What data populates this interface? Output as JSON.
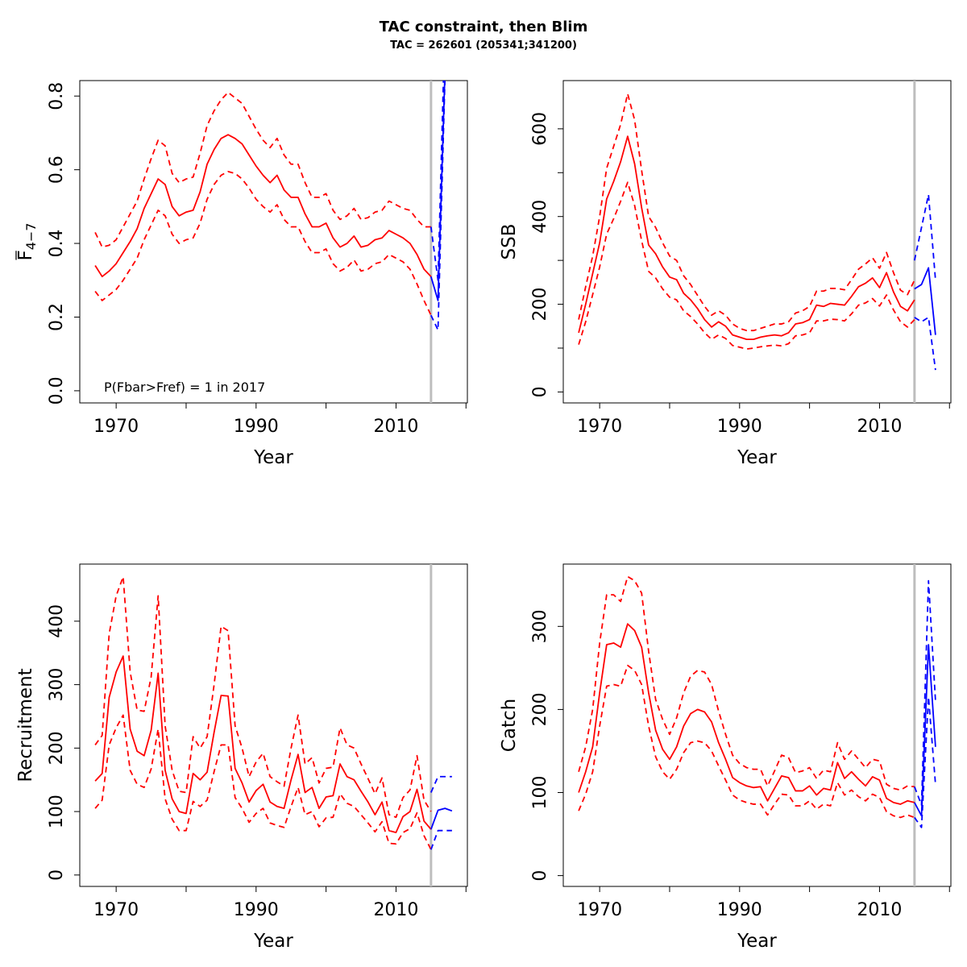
{
  "title": "TAC constraint, then Blim",
  "subtitle": "TAC = 262601 (205341;341200)",
  "colors": {
    "historic": "#ff0000",
    "forecast": "#0000ff",
    "divider": "#bebebe",
    "axis": "#000000"
  },
  "chart_data": [
    {
      "id": "fbar",
      "type": "line",
      "title": "",
      "xlabel": "Year",
      "ylabel": "F̄4−7",
      "ylabel_main": "F",
      "ylabel_sub": "4−7",
      "xlim": [
        1964.8,
        2020.2
      ],
      "ylim": [
        -0.033,
        0.842
      ],
      "xticks": [
        1970,
        1980,
        1990,
        2000,
        2010,
        2020
      ],
      "xtick_labels": [
        "1970",
        "",
        "1990",
        "",
        "2010",
        ""
      ],
      "yticks": [
        0.0,
        0.2,
        0.4,
        0.6,
        0.8
      ],
      "ytick_labels": [
        "0.0",
        "0.2",
        "0.4",
        "0.6",
        "0.8"
      ],
      "grid": false,
      "divider_year": 2015,
      "annotation": "P(Fbar>Fref) = 1  in 2017",
      "historic": {
        "x": [
          1967,
          1968,
          1969,
          1970,
          1971,
          1972,
          1973,
          1974,
          1975,
          1976,
          1977,
          1978,
          1979,
          1980,
          1981,
          1982,
          1983,
          1984,
          1985,
          1986,
          1987,
          1988,
          1989,
          1990,
          1991,
          1992,
          1993,
          1994,
          1995,
          1996,
          1997,
          1998,
          1999,
          2000,
          2001,
          2002,
          2003,
          2004,
          2005,
          2006,
          2007,
          2008,
          2009,
          2010,
          2011,
          2012,
          2013,
          2014,
          2015
        ],
        "median": [
          0.34,
          0.31,
          0.325,
          0.345,
          0.375,
          0.405,
          0.44,
          0.495,
          0.535,
          0.575,
          0.56,
          0.5,
          0.475,
          0.485,
          0.49,
          0.54,
          0.615,
          0.655,
          0.685,
          0.695,
          0.685,
          0.67,
          0.64,
          0.61,
          0.585,
          0.565,
          0.585,
          0.545,
          0.525,
          0.525,
          0.48,
          0.445,
          0.445,
          0.455,
          0.415,
          0.39,
          0.4,
          0.42,
          0.39,
          0.395,
          0.41,
          0.415,
          0.435,
          0.425,
          0.415,
          0.4,
          0.37,
          0.33,
          0.31
        ],
        "upper": [
          0.43,
          0.39,
          0.395,
          0.41,
          0.445,
          0.48,
          0.515,
          0.575,
          0.63,
          0.68,
          0.665,
          0.59,
          0.565,
          0.575,
          0.58,
          0.645,
          0.72,
          0.76,
          0.79,
          0.81,
          0.795,
          0.78,
          0.745,
          0.71,
          0.68,
          0.66,
          0.685,
          0.64,
          0.615,
          0.615,
          0.565,
          0.525,
          0.525,
          0.535,
          0.49,
          0.465,
          0.475,
          0.495,
          0.465,
          0.47,
          0.485,
          0.49,
          0.515,
          0.505,
          0.495,
          0.49,
          0.465,
          0.445,
          0.445
        ],
        "lower": [
          0.27,
          0.245,
          0.26,
          0.275,
          0.3,
          0.33,
          0.36,
          0.41,
          0.45,
          0.49,
          0.475,
          0.425,
          0.4,
          0.41,
          0.415,
          0.455,
          0.52,
          0.56,
          0.585,
          0.595,
          0.59,
          0.575,
          0.55,
          0.52,
          0.5,
          0.485,
          0.505,
          0.465,
          0.445,
          0.445,
          0.405,
          0.375,
          0.375,
          0.385,
          0.345,
          0.325,
          0.335,
          0.355,
          0.325,
          0.33,
          0.345,
          0.35,
          0.37,
          0.36,
          0.35,
          0.33,
          0.29,
          0.245,
          0.205
        ]
      },
      "forecast": {
        "x": [
          2015,
          2016,
          2017,
          2018
        ],
        "median": [
          0.31,
          0.245,
          0.87,
          null
        ],
        "upper": [
          0.445,
          0.3,
          1.0,
          null
        ],
        "lower": [
          0.205,
          0.165,
          0.85,
          null
        ]
      }
    },
    {
      "id": "ssb",
      "type": "line",
      "title": "",
      "xlabel": "Year",
      "ylabel": "SSB",
      "xlim": [
        1964.8,
        2020.2
      ],
      "ylim": [
        -25,
        710
      ],
      "xticks": [
        1970,
        1980,
        1990,
        2000,
        2010,
        2020
      ],
      "xtick_labels": [
        "1970",
        "",
        "1990",
        "",
        "2010",
        ""
      ],
      "yticks": [
        0,
        100,
        200,
        300,
        400,
        500,
        600
      ],
      "ytick_labels": [
        "0",
        "",
        "200",
        "",
        "400",
        "",
        "600"
      ],
      "grid": false,
      "divider_year": 2015,
      "historic": {
        "x": [
          1967,
          1968,
          1969,
          1970,
          1971,
          1972,
          1973,
          1974,
          1975,
          1976,
          1977,
          1978,
          1979,
          1980,
          1981,
          1982,
          1983,
          1984,
          1985,
          1986,
          1987,
          1988,
          1989,
          1990,
          1991,
          1992,
          1993,
          1994,
          1995,
          1996,
          1997,
          1998,
          1999,
          2000,
          2001,
          2002,
          2003,
          2004,
          2005,
          2006,
          2007,
          2008,
          2009,
          2010,
          2011,
          2012,
          2013,
          2014,
          2015
        ],
        "median": [
          135,
          200,
          270,
          340,
          440,
          480,
          525,
          583,
          520,
          420,
          335,
          315,
          285,
          262,
          256,
          225,
          210,
          190,
          165,
          148,
          160,
          150,
          130,
          125,
          120,
          120,
          125,
          128,
          130,
          128,
          135,
          155,
          158,
          165,
          198,
          195,
          202,
          200,
          198,
          218,
          240,
          248,
          260,
          238,
          272,
          228,
          195,
          185,
          210
        ],
        "upper": [
          165,
          240,
          310,
          400,
          510,
          560,
          610,
          680,
          620,
          505,
          400,
          375,
          340,
          310,
          300,
          265,
          245,
          220,
          195,
          175,
          185,
          175,
          155,
          145,
          140,
          140,
          145,
          150,
          155,
          155,
          160,
          180,
          185,
          195,
          230,
          230,
          236,
          236,
          233,
          256,
          280,
          292,
          306,
          282,
          318,
          272,
          232,
          222,
          255
        ],
        "lower": [
          108,
          160,
          222,
          285,
          360,
          395,
          435,
          478,
          425,
          345,
          275,
          260,
          235,
          216,
          210,
          185,
          172,
          155,
          135,
          120,
          130,
          122,
          106,
          102,
          98,
          100,
          103,
          105,
          107,
          105,
          110,
          128,
          130,
          135,
          162,
          162,
          166,
          165,
          162,
          178,
          198,
          203,
          213,
          196,
          221,
          187,
          160,
          148,
          165
        ]
      },
      "forecast": {
        "x": [
          2015,
          2016,
          2017,
          2018
        ],
        "median": [
          235,
          245,
          283,
          130
        ],
        "upper": [
          300,
          375,
          450,
          255
        ],
        "lower": [
          170,
          160,
          170,
          50
        ]
      }
    },
    {
      "id": "recruitment",
      "type": "line",
      "title": "",
      "xlabel": "Year",
      "ylabel": "Recruitment",
      "xlim": [
        1964.8,
        2020.2
      ],
      "ylim": [
        -18,
        490
      ],
      "xticks": [
        1970,
        1980,
        1990,
        2000,
        2010,
        2020
      ],
      "xtick_labels": [
        "1970",
        "",
        "1990",
        "",
        "2010",
        ""
      ],
      "yticks": [
        0,
        100,
        200,
        300,
        400
      ],
      "ytick_labels": [
        "0",
        "100",
        "200",
        "300",
        "400"
      ],
      "grid": false,
      "divider_year": 2015,
      "historic": {
        "x": [
          1967,
          1968,
          1969,
          1970,
          1971,
          1972,
          1973,
          1974,
          1975,
          1976,
          1977,
          1978,
          1979,
          1980,
          1981,
          1982,
          1983,
          1984,
          1985,
          1986,
          1987,
          1988,
          1989,
          1990,
          1991,
          1992,
          1993,
          1994,
          1995,
          1996,
          1997,
          1998,
          1999,
          2000,
          2001,
          2002,
          2003,
          2004,
          2005,
          2006,
          2007,
          2008,
          2009,
          2010,
          2011,
          2012,
          2013,
          2014,
          2015
        ],
        "median": [
          148,
          160,
          280,
          320,
          345,
          230,
          195,
          188,
          228,
          318,
          165,
          120,
          100,
          97,
          160,
          150,
          162,
          225,
          283,
          282,
          168,
          145,
          115,
          133,
          143,
          115,
          108,
          105,
          150,
          190,
          130,
          138,
          105,
          123,
          125,
          175,
          155,
          150,
          132,
          115,
          95,
          115,
          70,
          67,
          92,
          100,
          135,
          85,
          72
        ],
        "upper": [
          205,
          220,
          380,
          440,
          470,
          320,
          260,
          258,
          312,
          440,
          235,
          165,
          132,
          130,
          218,
          200,
          218,
          300,
          392,
          385,
          235,
          200,
          155,
          178,
          192,
          155,
          147,
          140,
          200,
          252,
          175,
          185,
          145,
          168,
          170,
          232,
          205,
          200,
          175,
          152,
          128,
          153,
          95,
          91,
          122,
          134,
          188,
          118,
          100
        ],
        "lower": [
          105,
          118,
          205,
          232,
          252,
          165,
          143,
          138,
          167,
          230,
          120,
          88,
          70,
          70,
          116,
          108,
          118,
          163,
          205,
          205,
          122,
          105,
          83,
          97,
          105,
          82,
          78,
          75,
          108,
          138,
          95,
          100,
          76,
          90,
          91,
          128,
          113,
          108,
          95,
          82,
          68,
          84,
          50,
          49,
          67,
          73,
          98,
          62,
          40
        ]
      },
      "forecast": {
        "x": [
          2015,
          2016,
          2017,
          2018
        ],
        "median": [
          72,
          102,
          105,
          101
        ],
        "upper": [
          130,
          155,
          155,
          155
        ],
        "lower": [
          40,
          70,
          70,
          70
        ]
      }
    },
    {
      "id": "catch",
      "type": "line",
      "title": "",
      "xlabel": "Year",
      "ylabel": "Catch",
      "xlim": [
        1964.8,
        2020.2
      ],
      "ylim": [
        -13,
        375
      ],
      "xticks": [
        1970,
        1980,
        1990,
        2000,
        2010,
        2020
      ],
      "xtick_labels": [
        "1970",
        "",
        "1990",
        "",
        "2010",
        ""
      ],
      "yticks": [
        0,
        100,
        200,
        300
      ],
      "ytick_labels": [
        "0",
        "100",
        "200",
        "300"
      ],
      "grid": false,
      "divider_year": 2015,
      "historic": {
        "x": [
          1967,
          1968,
          1969,
          1970,
          1971,
          1972,
          1973,
          1974,
          1975,
          1976,
          1977,
          1978,
          1979,
          1980,
          1981,
          1982,
          1983,
          1984,
          1985,
          1986,
          1987,
          1988,
          1989,
          1990,
          1991,
          1992,
          1993,
          1994,
          1995,
          1996,
          1997,
          1998,
          1999,
          2000,
          2001,
          2002,
          2003,
          2004,
          2005,
          2006,
          2007,
          2008,
          2009,
          2010,
          2011,
          2012,
          2013,
          2014,
          2015
        ],
        "median": [
          100,
          125,
          155,
          220,
          278,
          280,
          275,
          303,
          295,
          275,
          220,
          175,
          152,
          140,
          155,
          180,
          195,
          200,
          197,
          185,
          160,
          140,
          118,
          112,
          108,
          106,
          107,
          90,
          105,
          120,
          118,
          102,
          102,
          108,
          97,
          105,
          103,
          136,
          117,
          125,
          116,
          108,
          119,
          115,
          93,
          88,
          86,
          90,
          88
        ],
        "upper": [
          125,
          155,
          200,
          280,
          338,
          338,
          330,
          360,
          355,
          340,
          270,
          212,
          188,
          170,
          190,
          220,
          240,
          247,
          245,
          230,
          198,
          170,
          145,
          135,
          130,
          128,
          128,
          108,
          126,
          145,
          142,
          124,
          126,
          130,
          117,
          127,
          125,
          160,
          140,
          150,
          140,
          130,
          140,
          138,
          110,
          105,
          103,
          108,
          107
        ],
        "lower": [
          78,
          98,
          125,
          180,
          228,
          230,
          228,
          253,
          247,
          230,
          180,
          143,
          125,
          116,
          128,
          148,
          160,
          162,
          160,
          150,
          132,
          115,
          97,
          91,
          88,
          86,
          86,
          73,
          86,
          98,
          97,
          84,
          84,
          90,
          80,
          86,
          84,
          112,
          97,
          103,
          95,
          90,
          98,
          94,
          77,
          72,
          70,
          73,
          70
        ]
      },
      "forecast": {
        "x": [
          2015,
          2016,
          2017,
          2018
        ],
        "median": [
          88,
          72,
          278,
          155
        ],
        "upper": [
          107,
          85,
          355,
          210
        ],
        "lower": [
          70,
          58,
          215,
          110
        ]
      }
    }
  ]
}
